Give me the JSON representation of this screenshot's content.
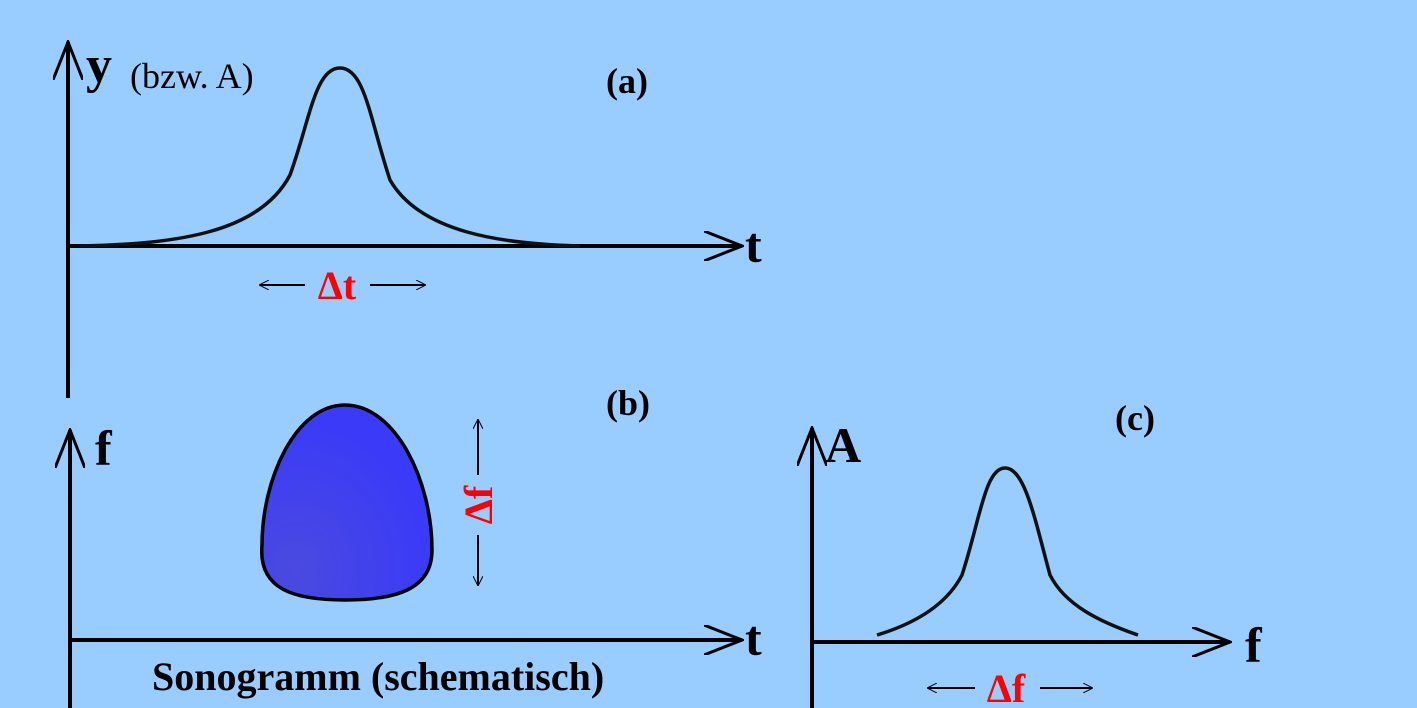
{
  "panel_a": {
    "label": "(a)",
    "y_axis": "y",
    "y_axis_note": "(bzw. A)",
    "x_axis": "t",
    "width_label": "Δt"
  },
  "panel_b": {
    "label": "(b)",
    "y_axis": "f",
    "x_axis": "t",
    "height_label": "Δf",
    "caption": "Sonogramm (schematisch)"
  },
  "panel_c": {
    "label": "(c)",
    "y_axis": "A",
    "x_axis": "f",
    "width_label": "Δf"
  }
}
